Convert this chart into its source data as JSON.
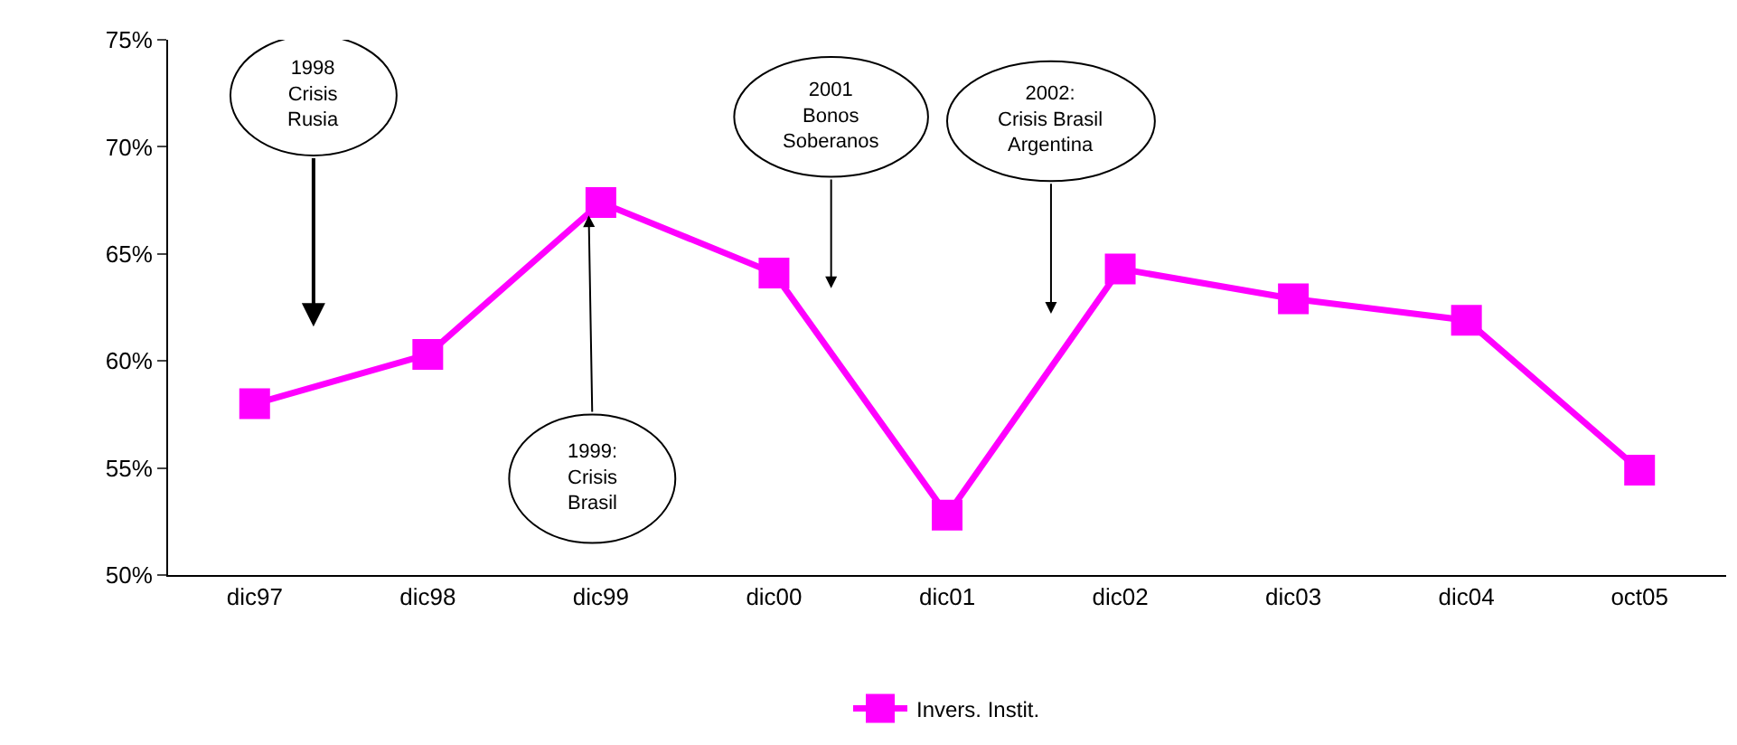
{
  "chart_data": {
    "type": "line",
    "categories": [
      "dic97",
      "dic98",
      "dic99",
      "dic00",
      "dic01",
      "dic02",
      "dic03",
      "dic04",
      "oct05"
    ],
    "series": [
      {
        "name": "Invers. Instit.",
        "color": "#ff00ff",
        "values": [
          58.0,
          60.3,
          67.4,
          64.1,
          52.8,
          64.3,
          62.9,
          61.9,
          54.9
        ]
      }
    ],
    "ylim": [
      50,
      75
    ],
    "yticks": [
      {
        "value": 50,
        "label": "50%"
      },
      {
        "value": 55,
        "label": "55%"
      },
      {
        "value": 60,
        "label": "60%"
      },
      {
        "value": 65,
        "label": "65%"
      },
      {
        "value": 70,
        "label": "70%"
      },
      {
        "value": 75,
        "label": "75%"
      }
    ],
    "annotations": [
      "1998\nCrisis\nRusia",
      "1999:\nCrisis\nBrasil",
      "2001\nBonos\nSoberanos",
      "2002:\nCrisis Brasil\nArgentina"
    ],
    "marker": "square",
    "line_style": "solid",
    "legend": "bottom"
  }
}
